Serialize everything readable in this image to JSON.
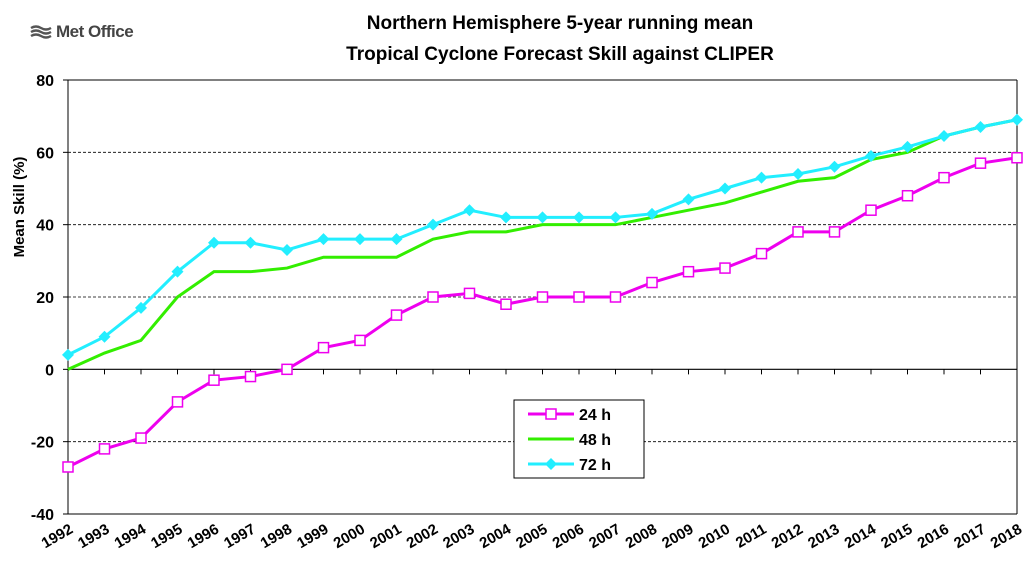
{
  "brand": {
    "name": "Met Office",
    "icon": "met-office-logo-icon"
  },
  "chart_data": {
    "type": "line",
    "title": "Northern Hemisphere 5-year running mean",
    "subtitle": "Tropical Cyclone Forecast Skill against CLIPER",
    "xlabel": "",
    "ylabel": "Mean Skill (%)",
    "ylim": [
      -40,
      80
    ],
    "yticks": [
      -40,
      -20,
      0,
      20,
      40,
      60,
      80
    ],
    "grid": "horizontal-dashed",
    "legend_position": "center-bottom",
    "categories": [
      "1992",
      "1993",
      "1994",
      "1995",
      "1996",
      "1997",
      "1998",
      "1999",
      "2000",
      "2001",
      "2002",
      "2003",
      "2004",
      "2005",
      "2006",
      "2007",
      "2008",
      "2009",
      "2010",
      "2011",
      "2012",
      "2013",
      "2014",
      "2015",
      "2016",
      "2017",
      "2018"
    ],
    "series": [
      {
        "name": "24 h",
        "color": "#ee00ee",
        "marker": "open-square",
        "values": [
          -27,
          -22,
          -19,
          -9,
          -3,
          -2,
          0,
          6,
          8,
          15,
          20,
          21,
          18,
          20,
          20,
          20,
          24,
          27,
          28,
          32,
          38,
          38,
          44,
          48,
          53,
          57,
          58.5
        ]
      },
      {
        "name": "48 h",
        "color": "#33ee00",
        "marker": "none",
        "values": [
          0,
          4.5,
          8,
          20,
          27,
          27,
          28,
          31,
          31,
          31,
          36,
          38,
          38,
          40,
          40,
          40,
          42,
          44,
          46,
          49,
          52,
          53,
          58,
          60,
          64.5,
          67,
          69
        ]
      },
      {
        "name": "72 h",
        "color": "#22eeff",
        "marker": "filled-diamond",
        "values": [
          4,
          9,
          17,
          27,
          35,
          35,
          33,
          36,
          36,
          36,
          40,
          44,
          42,
          42,
          42,
          42,
          43,
          47,
          50,
          53,
          54,
          56,
          59,
          61.5,
          64.5,
          67,
          69
        ]
      }
    ]
  }
}
